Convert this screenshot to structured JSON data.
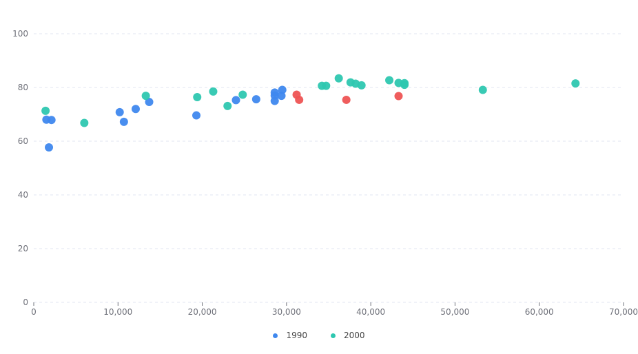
{
  "chart_data": {
    "type": "scatter",
    "title": "",
    "xlabel": "",
    "ylabel": "",
    "xlim": [
      0,
      70000
    ],
    "ylim": [
      0,
      100
    ],
    "x_ticks": [
      "0",
      "10,000",
      "20,000",
      "30,000",
      "40,000",
      "50,000",
      "60,000",
      "70,000"
    ],
    "y_ticks": [
      "0",
      "20",
      "40",
      "60",
      "80",
      "100"
    ],
    "grid": "horizontal dashed",
    "legend_position": "bottom-center",
    "series": [
      {
        "name": "1990",
        "color": "#3f88ee",
        "points": [
          [
            1500,
            68
          ],
          [
            2100,
            67.9
          ],
          [
            1800,
            57.7
          ],
          [
            10200,
            70.8
          ],
          [
            10700,
            67.2
          ],
          [
            12100,
            72
          ],
          [
            13700,
            74.6
          ],
          [
            19300,
            69.6
          ],
          [
            24000,
            75.3
          ],
          [
            26400,
            75.6
          ],
          [
            28600,
            78.1
          ],
          [
            28600,
            77
          ],
          [
            28600,
            75
          ],
          [
            29400,
            76.9
          ],
          [
            29500,
            79.1
          ]
        ],
        "highlight_color": "#ee5454",
        "highlight_points": [
          [
            31200,
            77.3
          ],
          [
            31500,
            75.4
          ],
          [
            37100,
            75.4
          ],
          [
            43300,
            76.8
          ]
        ]
      },
      {
        "name": "2000",
        "color": "#2ec7b0",
        "points": [
          [
            1400,
            71.3
          ],
          [
            6000,
            66.8
          ],
          [
            13300,
            76.9
          ],
          [
            19400,
            76.4
          ],
          [
            21300,
            78.5
          ],
          [
            23000,
            73.1
          ],
          [
            24800,
            77.3
          ],
          [
            34200,
            80.6
          ],
          [
            34700,
            80.6
          ],
          [
            36200,
            83.4
          ],
          [
            37600,
            81.9
          ],
          [
            38200,
            81.4
          ],
          [
            38900,
            80.8
          ],
          [
            42200,
            82.7
          ],
          [
            43300,
            81.7
          ],
          [
            44000,
            81.6
          ],
          [
            44000,
            81
          ],
          [
            53300,
            79.1
          ],
          [
            64300,
            81.5
          ]
        ]
      }
    ]
  }
}
